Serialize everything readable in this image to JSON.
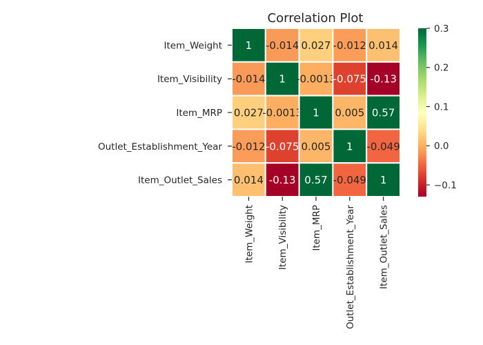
{
  "chart_data": {
    "type": "heatmap",
    "title": "Correlation Plot",
    "xlabel": "",
    "ylabel": "",
    "rows": [
      "Item_Weight",
      "Item_Visibility",
      "Item_MRP",
      "Outlet_Establishment_Year",
      "Item_Outlet_Sales"
    ],
    "columns": [
      "Item_Weight",
      "Item_Visibility",
      "Item_MRP",
      "Outlet_Establishment_Year",
      "Item_Outlet_Sales"
    ],
    "values": [
      [
        1,
        -0.014,
        0.027,
        -0.012,
        0.014
      ],
      [
        -0.014,
        1,
        -0.0013,
        -0.075,
        -0.13
      ],
      [
        0.027,
        -0.0013,
        1,
        0.005,
        0.57
      ],
      [
        -0.012,
        -0.075,
        0.005,
        1,
        -0.049
      ],
      [
        0.014,
        -0.13,
        0.57,
        -0.049,
        1
      ]
    ],
    "cell_labels": [
      [
        "1",
        "-0.014",
        "0.027",
        "-0.012",
        "0.014"
      ],
      [
        "-0.014",
        "1",
        "-0.0013",
        "-0.075",
        "-0.13"
      ],
      [
        "0.027",
        "-0.0013",
        "1",
        "0.005",
        "0.57"
      ],
      [
        "-0.012",
        "-0.075",
        "0.005",
        "1",
        "-0.049"
      ],
      [
        "0.014",
        "-0.13",
        "0.57",
        "-0.049",
        "1"
      ]
    ],
    "colormap": "RdYlGn",
    "color_range": [
      -0.13,
      0.3
    ],
    "colorbar_ticks": [
      0.3,
      0.2,
      0.1,
      0.0,
      -0.1
    ],
    "colorbar_tick_labels": [
      "0.3",
      "0.2",
      "0.1",
      "0.0",
      "−0.1"
    ],
    "colors": {
      "low": "#a50026",
      "high": "#006837",
      "cell_border": "#ffffff"
    },
    "grid": false
  }
}
